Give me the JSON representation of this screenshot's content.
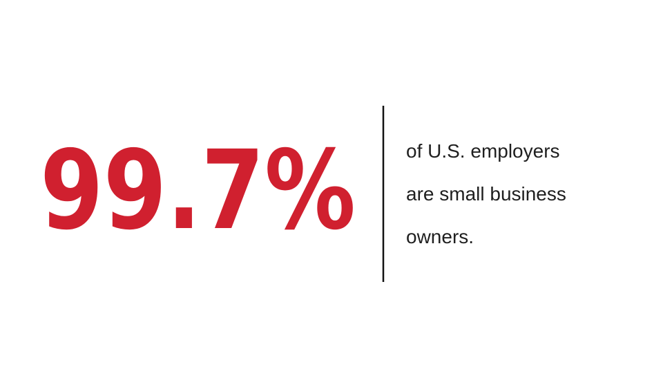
{
  "stat": {
    "value": "99.7%",
    "description": [
      "of U.S. employers",
      "are small business",
      "owners."
    ]
  }
}
